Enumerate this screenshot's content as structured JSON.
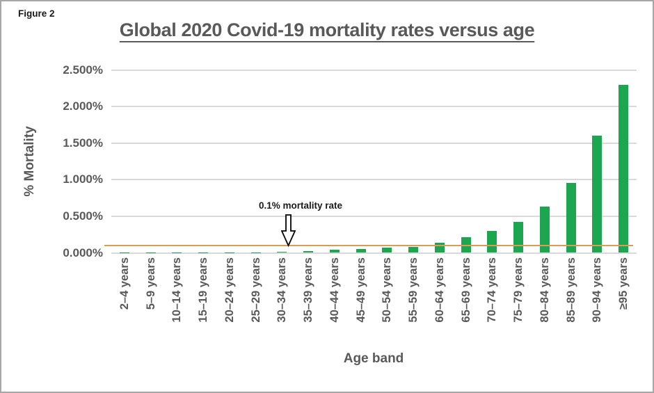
{
  "figure_label": "Figure 2",
  "chart_data": {
    "type": "bar",
    "title": "Global 2020 Covid-19 mortality rates versus age",
    "xlabel": "Age band",
    "ylabel": "% Mortality",
    "ylim": [
      0,
      2.5
    ],
    "grid": true,
    "legend": "none",
    "categories": [
      "2–4 years",
      "5–9 years",
      "10–14 years",
      "15–19 years",
      "20–24 years",
      "25–29 years",
      "30–34 years",
      "35–39 years",
      "40–44 years",
      "45–49 years",
      "50–54 years",
      "55–59 years",
      "60–64 years",
      "65–69 years",
      "70–74 years",
      "75–79 years",
      "80–84 years",
      "85–89 years",
      "90–94 years",
      "≥95 years"
    ],
    "values": [
      0.001,
      0.001,
      0.001,
      0.002,
      0.004,
      0.006,
      0.01,
      0.02,
      0.04,
      0.05,
      0.07,
      0.08,
      0.14,
      0.21,
      0.3,
      0.42,
      0.63,
      0.96,
      1.6,
      2.3
    ],
    "yticks": [
      {
        "label": "0.000%",
        "value": 0.0
      },
      {
        "label": "0.500%",
        "value": 0.5
      },
      {
        "label": "1.000%",
        "value": 1.0
      },
      {
        "label": "1.500%",
        "value": 1.5
      },
      {
        "label": "2.000%",
        "value": 2.0
      },
      {
        "label": "2.500%",
        "value": 2.5
      }
    ],
    "ref_line": {
      "value": 0.1,
      "label": "0.1% mortality rate"
    },
    "colors": {
      "bar": "#1BA64F",
      "ref_line": "#D99C54",
      "gridline": "#D9D9D9",
      "axis_text": "#595959",
      "border": "#A6A6A6",
      "annotation_text": "#1A1A1A"
    }
  }
}
